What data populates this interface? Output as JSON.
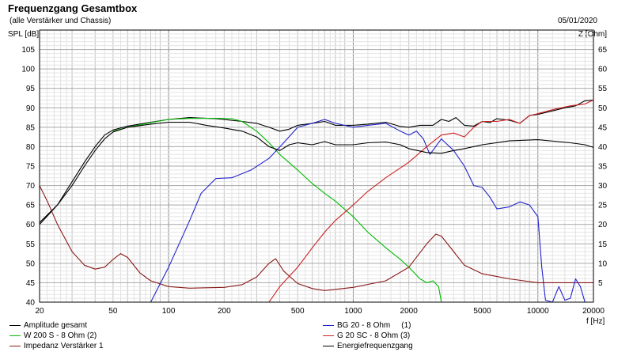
{
  "chart_data": {
    "type": "line",
    "title": "Frequenzgang Gesamtbox",
    "subtitle": "(alle Verstärker und Chassis)",
    "date": "05/01/2020",
    "ylabel_left": "SPL [dB]",
    "ylabel_right": "Z [Ohm]",
    "xlabel": "f [Hz]",
    "x_scale": "log",
    "xlim": [
      20,
      20000
    ],
    "ylim_left": [
      40,
      110
    ],
    "ylim_right": [
      0,
      70
    ],
    "grid": true,
    "legend_position": "bottom",
    "x_ticks": [
      {
        "v": 20,
        "label": "20"
      },
      {
        "v": 50,
        "label": "50"
      },
      {
        "v": 100,
        "label": "100"
      },
      {
        "v": 200,
        "label": "200"
      },
      {
        "v": 500,
        "label": "500"
      },
      {
        "v": 1000,
        "label": "1000"
      },
      {
        "v": 2000,
        "label": "2000"
      },
      {
        "v": 5000,
        "label": "5000"
      },
      {
        "v": 10000,
        "label": "10000"
      },
      {
        "v": 20000,
        "label": "20000"
      }
    ],
    "y_ticks_left": [
      "40",
      "45",
      "50",
      "55",
      "60",
      "65",
      "70",
      "75",
      "80",
      "85",
      "90",
      "95",
      "100",
      "105"
    ],
    "y_ticks_right": [
      "5",
      "10",
      "15",
      "20",
      "25",
      "30",
      "35",
      "40",
      "45",
      "50",
      "55",
      "60",
      "65"
    ],
    "series": [
      {
        "id": "s1",
        "name": "Amplitude gesamt",
        "color": "#000000",
        "axis": "left",
        "points": [
          [
            20,
            60
          ],
          [
            25,
            65
          ],
          [
            30,
            71
          ],
          [
            35,
            76
          ],
          [
            40,
            80
          ],
          [
            45,
            83
          ],
          [
            50,
            84.3
          ],
          [
            60,
            85.3
          ],
          [
            80,
            86.3
          ],
          [
            100,
            87
          ],
          [
            130,
            87.5
          ],
          [
            180,
            87.2
          ],
          [
            250,
            86.5
          ],
          [
            300,
            86
          ],
          [
            350,
            85
          ],
          [
            400,
            84
          ],
          [
            450,
            84.5
          ],
          [
            500,
            85.5
          ],
          [
            600,
            86
          ],
          [
            700,
            86.5
          ],
          [
            800,
            85.5
          ],
          [
            1000,
            85.5
          ],
          [
            1200,
            85.8
          ],
          [
            1500,
            86.3
          ],
          [
            1800,
            85.2
          ],
          [
            2000,
            85
          ],
          [
            2300,
            85.5
          ],
          [
            2700,
            85.5
          ],
          [
            3000,
            87
          ],
          [
            3300,
            86.5
          ],
          [
            3600,
            87.5
          ],
          [
            4000,
            85.5
          ],
          [
            4500,
            85.3
          ],
          [
            5000,
            86.5
          ],
          [
            5500,
            86.2
          ],
          [
            6000,
            87.2
          ],
          [
            7000,
            86.8
          ],
          [
            8000,
            86
          ],
          [
            9000,
            88
          ],
          [
            10000,
            88.3
          ],
          [
            12000,
            89.2
          ],
          [
            14000,
            90
          ],
          [
            16000,
            90.5
          ],
          [
            18000,
            91.8
          ],
          [
            20000,
            92
          ]
        ]
      },
      {
        "id": "s2",
        "name": "W 200 S - 8 Ohm",
        "num": "(2)",
        "color": "#00bb00",
        "axis": "left",
        "points": [
          [
            50,
            84
          ],
          [
            60,
            85
          ],
          [
            80,
            86.2
          ],
          [
            100,
            87
          ],
          [
            130,
            87.3
          ],
          [
            180,
            87.3
          ],
          [
            220,
            87.2
          ],
          [
            250,
            86.5
          ],
          [
            300,
            84
          ],
          [
            350,
            81
          ],
          [
            400,
            78
          ],
          [
            500,
            74
          ],
          [
            600,
            70.5
          ],
          [
            700,
            68
          ],
          [
            800,
            66
          ],
          [
            1000,
            62
          ],
          [
            1200,
            58
          ],
          [
            1500,
            54
          ],
          [
            1800,
            51
          ],
          [
            2000,
            49
          ],
          [
            2300,
            46
          ],
          [
            2500,
            45
          ],
          [
            2700,
            45.5
          ],
          [
            2900,
            44
          ],
          [
            3000,
            40
          ]
        ]
      },
      {
        "id": "s3",
        "name": "Impedanz Verstärker 1",
        "color": "#8b1a1a",
        "axis": "right",
        "points": [
          [
            20,
            30
          ],
          [
            22,
            26
          ],
          [
            25,
            20
          ],
          [
            30,
            13
          ],
          [
            35,
            9.5
          ],
          [
            40,
            8.5
          ],
          [
            45,
            9
          ],
          [
            50,
            11
          ],
          [
            55,
            12.5
          ],
          [
            60,
            11.5
          ],
          [
            70,
            7.5
          ],
          [
            80,
            5.5
          ],
          [
            100,
            4
          ],
          [
            130,
            3.6
          ],
          [
            200,
            3.8
          ],
          [
            250,
            4.5
          ],
          [
            300,
            6.5
          ],
          [
            350,
            10
          ],
          [
            380,
            11.2
          ],
          [
            420,
            8
          ],
          [
            500,
            4.8
          ],
          [
            600,
            3.5
          ],
          [
            700,
            3
          ],
          [
            1000,
            3.8
          ],
          [
            1500,
            5.5
          ],
          [
            2000,
            9
          ],
          [
            2500,
            15
          ],
          [
            2800,
            17.5
          ],
          [
            3000,
            17
          ],
          [
            3500,
            13
          ],
          [
            4000,
            9.5
          ],
          [
            5000,
            7.3
          ],
          [
            7000,
            6
          ],
          [
            10000,
            5
          ],
          [
            15000,
            5
          ],
          [
            20000,
            5
          ]
        ]
      },
      {
        "id": "s4",
        "name": "BG 20 - 8 Ohm",
        "num": "(1)",
        "color": "#2222cc",
        "axis": "left",
        "points": [
          [
            80,
            40
          ],
          [
            100,
            49
          ],
          [
            130,
            61
          ],
          [
            150,
            68
          ],
          [
            180,
            71.8
          ],
          [
            220,
            72
          ],
          [
            280,
            74
          ],
          [
            350,
            77
          ],
          [
            420,
            81
          ],
          [
            500,
            85
          ],
          [
            600,
            86
          ],
          [
            700,
            87
          ],
          [
            800,
            86
          ],
          [
            1000,
            85
          ],
          [
            1200,
            85.5
          ],
          [
            1500,
            86
          ],
          [
            1800,
            84
          ],
          [
            2000,
            83
          ],
          [
            2200,
            84
          ],
          [
            2400,
            82
          ],
          [
            2600,
            78
          ],
          [
            3000,
            82
          ],
          [
            3500,
            79
          ],
          [
            4000,
            75
          ],
          [
            4500,
            70
          ],
          [
            5000,
            69.5
          ],
          [
            5500,
            67
          ],
          [
            6000,
            64
          ],
          [
            7000,
            64.5
          ],
          [
            8000,
            65.8
          ],
          [
            9000,
            65
          ],
          [
            10000,
            62
          ],
          [
            10500,
            49
          ],
          [
            11000,
            40.5
          ],
          [
            12000,
            40
          ],
          [
            13000,
            44
          ],
          [
            14000,
            40.5
          ],
          [
            15000,
            41
          ],
          [
            16000,
            46
          ],
          [
            17000,
            44
          ],
          [
            18000,
            40
          ],
          [
            20000,
            40
          ]
        ]
      },
      {
        "id": "s5",
        "name": "G 20 SC - 8 Ohm",
        "num": "(3)",
        "color": "#cc2222",
        "axis": "left",
        "points": [
          [
            350,
            40
          ],
          [
            400,
            44
          ],
          [
            500,
            49
          ],
          [
            600,
            54
          ],
          [
            700,
            58
          ],
          [
            800,
            61
          ],
          [
            1000,
            65
          ],
          [
            1200,
            68.5
          ],
          [
            1500,
            72
          ],
          [
            2000,
            76
          ],
          [
            2500,
            80
          ],
          [
            3000,
            83
          ],
          [
            3500,
            83.5
          ],
          [
            4000,
            82.5
          ],
          [
            4500,
            85
          ],
          [
            5000,
            86.5
          ],
          [
            6000,
            86.5
          ],
          [
            7000,
            87
          ],
          [
            8000,
            86
          ],
          [
            9000,
            88
          ],
          [
            10000,
            88.5
          ],
          [
            12000,
            89.5
          ],
          [
            15000,
            90.5
          ],
          [
            18000,
            91
          ],
          [
            20000,
            92
          ]
        ]
      },
      {
        "id": "s6",
        "name": "Energiefrequenzgang",
        "color": "#000000",
        "axis": "left",
        "points": [
          [
            20,
            60.5
          ],
          [
            25,
            65
          ],
          [
            30,
            70
          ],
          [
            35,
            75
          ],
          [
            40,
            79
          ],
          [
            45,
            82
          ],
          [
            50,
            83.8
          ],
          [
            60,
            85
          ],
          [
            80,
            85.8
          ],
          [
            100,
            86.3
          ],
          [
            130,
            86.3
          ],
          [
            160,
            85.5
          ],
          [
            200,
            84.8
          ],
          [
            250,
            84
          ],
          [
            300,
            82.5
          ],
          [
            350,
            80
          ],
          [
            400,
            79
          ],
          [
            450,
            80.5
          ],
          [
            500,
            81
          ],
          [
            600,
            80.5
          ],
          [
            700,
            81.3
          ],
          [
            800,
            80.5
          ],
          [
            1000,
            80.5
          ],
          [
            1200,
            81
          ],
          [
            1500,
            81.2
          ],
          [
            1800,
            80.5
          ],
          [
            2000,
            79.5
          ],
          [
            2500,
            78.5
          ],
          [
            3000,
            78.3
          ],
          [
            3500,
            79
          ],
          [
            4000,
            79.5
          ],
          [
            5000,
            80.5
          ],
          [
            7000,
            81.5
          ],
          [
            10000,
            81.8
          ],
          [
            15000,
            81
          ],
          [
            18000,
            80.5
          ],
          [
            20000,
            79.8
          ]
        ]
      }
    ]
  }
}
